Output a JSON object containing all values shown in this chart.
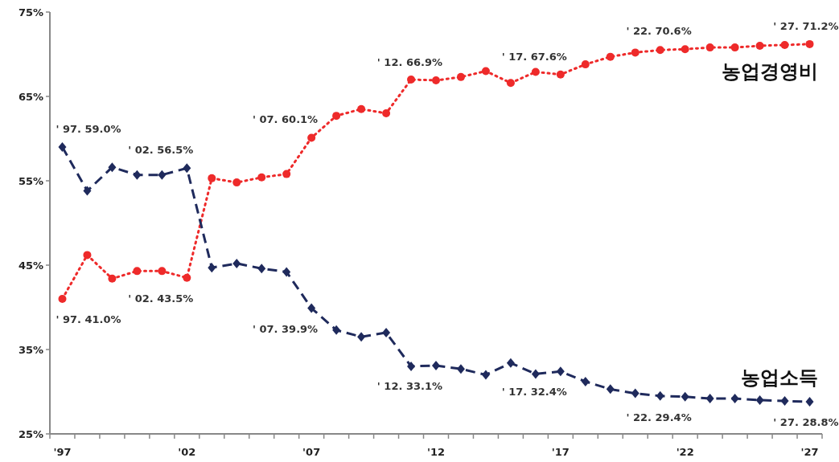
{
  "chart_data": {
    "type": "line",
    "categories": [
      "'97",
      null,
      null,
      null,
      null,
      "'02",
      null,
      null,
      null,
      null,
      "'07",
      null,
      null,
      null,
      null,
      "'12",
      null,
      null,
      null,
      null,
      "'17",
      null,
      null,
      null,
      null,
      "'22",
      null,
      null,
      null,
      null,
      "'27"
    ],
    "series": [
      {
        "name": "농업경영비",
        "color": "#ee2a2a",
        "marker": "circle",
        "line_style": "dotted",
        "values": [
          41.0,
          46.2,
          43.4,
          44.3,
          44.3,
          43.5,
          55.3,
          54.8,
          55.4,
          55.8,
          60.1,
          62.7,
          63.5,
          63.0,
          67.0,
          66.9,
          67.3,
          68.0,
          66.6,
          67.9,
          67.6,
          68.8,
          69.7,
          70.2,
          70.5,
          70.6,
          70.8,
          70.8,
          71.0,
          71.1,
          71.2
        ]
      },
      {
        "name": "농업소득",
        "color": "#1f2a5c",
        "marker": "diamond",
        "line_style": "dashed",
        "values": [
          59.0,
          53.8,
          56.6,
          55.7,
          55.7,
          56.5,
          44.7,
          45.2,
          44.6,
          44.2,
          39.9,
          37.3,
          36.5,
          37.0,
          33.0,
          33.1,
          32.7,
          32.0,
          33.4,
          32.1,
          32.4,
          31.2,
          30.3,
          29.8,
          29.5,
          29.4,
          29.2,
          29.2,
          29.0,
          28.9,
          28.8
        ]
      }
    ],
    "ylim": [
      25,
      75
    ],
    "yticks": [
      {
        "value": 25,
        "label": "25%"
      },
      {
        "value": 35,
        "label": "35%"
      },
      {
        "value": 45,
        "label": "45%"
      },
      {
        "value": 55,
        "label": "55%"
      },
      {
        "value": 65,
        "label": "65%"
      },
      {
        "value": 75,
        "label": "75%"
      }
    ],
    "grid": false,
    "annotations": [
      {
        "text": "' 97. 59.0%",
        "x": "'97",
        "y": 59.0
      },
      {
        "text": "' 97. 41.0%",
        "x": "'97",
        "y": 41.0
      },
      {
        "text": "' 02. 56.5%",
        "x": "'02",
        "y": 56.5
      },
      {
        "text": "' 02. 43.5%",
        "x": "'02",
        "y": 43.5
      },
      {
        "text": "' 07. 60.1%",
        "x": "'07",
        "y": 60.1
      },
      {
        "text": "' 07. 39.9%",
        "x": "'07",
        "y": 39.9
      },
      {
        "text": "' 12. 66.9%",
        "x": "'12",
        "y": 66.9
      },
      {
        "text": "' 12. 33.1%",
        "x": "'12",
        "y": 33.1
      },
      {
        "text": "' 17. 67.6%",
        "x": "'17",
        "y": 67.6
      },
      {
        "text": "' 17. 32.4%",
        "x": "'17",
        "y": 32.4
      },
      {
        "text": "' 22. 70.6%",
        "x": "'22",
        "y": 70.6
      },
      {
        "text": "' 22. 29.4%",
        "x": "'22",
        "y": 29.4
      },
      {
        "text": "' 27. 71.2%",
        "x": "'27",
        "y": 71.2
      },
      {
        "text": "' 27. 28.8%",
        "x": "'27",
        "y": 28.8
      }
    ]
  }
}
